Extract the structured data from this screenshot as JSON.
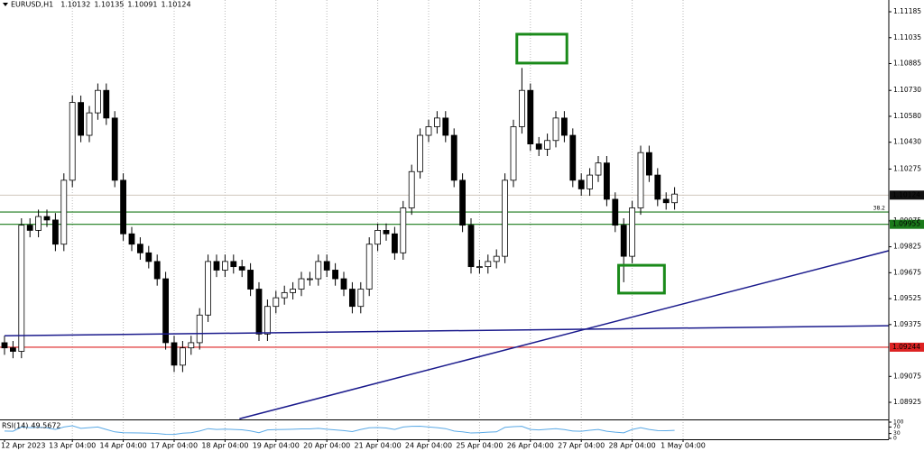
{
  "chart_data": {
    "type": "candlestick",
    "symbol": "EURUSD,H1",
    "header_values": [
      1.10132,
      1.10135,
      1.10091,
      1.10124
    ],
    "up_color": "#ffffff",
    "down_color": "#000000",
    "open": [
      1.0927,
      1.0924,
      1.0922,
      1.0995,
      1.0992,
      1.1,
      1.0998,
      1.0984,
      1.1021,
      1.1066,
      1.1047,
      1.106,
      1.1073,
      1.1057,
      1.1021,
      1.099,
      1.0984,
      1.0979,
      1.0974,
      1.0964,
      1.0927,
      1.0914,
      1.0924,
      1.0927,
      1.0943,
      1.0974,
      1.0969,
      1.0974,
      1.0971,
      1.0969,
      1.0958,
      1.0932,
      1.0948,
      1.0953,
      1.0956,
      1.0958,
      1.0964,
      1.0964,
      1.0974,
      1.0969,
      1.0964,
      1.0958,
      1.0948,
      1.0958,
      1.0984,
      1.0992,
      1.099,
      1.0979,
      1.1005,
      1.1026,
      1.1047,
      1.1052,
      1.1057,
      1.1047,
      1.1021,
      1.0995,
      1.0971,
      1.0971,
      1.0974,
      1.0977,
      1.1021,
      1.1052,
      1.1073,
      1.1042,
      1.1039,
      1.1044,
      1.1057,
      1.1047,
      1.1021,
      1.1016,
      1.1024,
      1.1031,
      1.101,
      1.0995,
      1.0977,
      1.1005,
      1.1037,
      1.1024,
      1.101,
      1.1008
    ],
    "high": [
      1.0931,
      1.0928,
      1.0999,
      1.0999,
      1.1004,
      1.1004,
      1.1002,
      1.1025,
      1.107,
      1.107,
      1.1064,
      1.1077,
      1.1077,
      1.1061,
      1.1025,
      1.0994,
      1.0988,
      1.0983,
      1.0978,
      1.0968,
      1.0931,
      1.0928,
      1.0931,
      1.0947,
      1.0978,
      1.0978,
      1.0978,
      1.0978,
      1.0975,
      1.0973,
      1.0962,
      1.0952,
      1.0957,
      1.096,
      1.0962,
      1.0968,
      1.0968,
      1.0978,
      1.0978,
      1.0973,
      1.0968,
      1.0962,
      1.0962,
      1.0988,
      1.0996,
      1.0996,
      1.0994,
      1.1009,
      1.103,
      1.1051,
      1.1056,
      1.1061,
      1.1061,
      1.1051,
      1.1025,
      1.0999,
      1.0975,
      1.0978,
      1.0981,
      1.1025,
      1.1056,
      1.1086,
      1.1077,
      1.1046,
      1.1048,
      1.1061,
      1.1061,
      1.1051,
      1.1025,
      1.1028,
      1.1035,
      1.1035,
      1.1014,
      1.0999,
      1.1009,
      1.1041,
      1.1041,
      1.1028,
      1.1014,
      1.1017
    ],
    "low": [
      1.092,
      1.0918,
      1.0918,
      1.0988,
      1.0988,
      1.0994,
      1.098,
      1.098,
      1.1017,
      1.1043,
      1.1043,
      1.1056,
      1.1053,
      1.1017,
      1.0986,
      1.098,
      1.0975,
      1.097,
      1.096,
      1.0923,
      1.091,
      1.091,
      1.092,
      1.0923,
      1.0939,
      1.0965,
      1.0965,
      1.0967,
      1.0965,
      1.0954,
      1.0928,
      1.0928,
      1.0944,
      1.0949,
      1.0952,
      1.0954,
      1.096,
      1.096,
      1.0965,
      1.096,
      1.0954,
      1.0944,
      1.0944,
      1.0954,
      1.098,
      1.0986,
      1.0975,
      1.0975,
      1.1001,
      1.1022,
      1.1043,
      1.1048,
      1.1043,
      1.1017,
      1.0991,
      1.0967,
      1.0967,
      1.0967,
      1.097,
      1.0973,
      1.1017,
      1.1048,
      1.1038,
      1.1035,
      1.1035,
      1.104,
      1.1043,
      1.1017,
      1.1012,
      1.1012,
      1.102,
      1.1006,
      1.0991,
      1.0962,
      1.0973,
      1.1001,
      1.102,
      1.1006,
      1.1004,
      1.1004
    ],
    "close": [
      1.0924,
      1.0922,
      1.0995,
      1.0992,
      1.1,
      1.0998,
      1.0984,
      1.1021,
      1.1066,
      1.1047,
      1.106,
      1.1073,
      1.1057,
      1.1021,
      1.099,
      1.0984,
      1.0979,
      1.0974,
      1.0964,
      1.0927,
      1.0914,
      1.0924,
      1.0927,
      1.0943,
      1.0974,
      1.0969,
      1.0974,
      1.0971,
      1.0969,
      1.0958,
      1.0932,
      1.0948,
      1.0953,
      1.0956,
      1.0958,
      1.0964,
      1.0964,
      1.0974,
      1.0969,
      1.0964,
      1.0958,
      1.0948,
      1.0958,
      1.0984,
      1.0992,
      1.099,
      1.0979,
      1.1005,
      1.1026,
      1.1047,
      1.1052,
      1.1057,
      1.1047,
      1.1021,
      1.0995,
      1.0971,
      1.0971,
      1.0974,
      1.0977,
      1.1021,
      1.1052,
      1.1073,
      1.1042,
      1.1039,
      1.1044,
      1.1057,
      1.1047,
      1.1021,
      1.1016,
      1.1024,
      1.1031,
      1.101,
      1.0995,
      1.0977,
      1.1005,
      1.1037,
      1.1024,
      1.101,
      1.1008,
      1.1013
    ],
    "ylim": [
      1.08826,
      1.11253
    ],
    "yticks": [
      1.11185,
      1.11035,
      1.10885,
      {
        "value": 1.1073,
        "label": "1.10730"
      },
      {
        "value": 1.1058,
        "label": "1.10580"
      },
      {
        "value": 1.1043,
        "label": "1.10430"
      },
      1.10275,
      1.09975,
      1.09825,
      1.09675,
      1.09525,
      1.09375,
      1.09075,
      1.08925
    ],
    "xticks": [
      {
        "value": 0,
        "label": "12 Apr 2023"
      },
      {
        "value": 8,
        "label": "13 Apr 04:00"
      },
      {
        "value": 14,
        "label": "14 Apr 04:00"
      },
      {
        "value": 20,
        "label": "17 Apr 04:00"
      },
      {
        "value": 26,
        "label": "18 Apr 04:00"
      },
      {
        "value": 32,
        "label": "19 Apr 04:00"
      },
      {
        "value": 38,
        "label": "20 Apr 04:00"
      },
      {
        "value": 44,
        "label": "21 Apr 04:00"
      },
      {
        "value": 50,
        "label": "24 Apr 04:00"
      },
      {
        "value": 56,
        "label": "25 Apr 04:00"
      },
      {
        "value": 62,
        "label": "26 Apr 04:00"
      },
      {
        "value": 68,
        "label": "27 Apr 04:00"
      },
      {
        "value": 74,
        "label": "28 Apr 04:00"
      },
      {
        "value": 80,
        "label": "1 May 04:00"
      }
    ],
    "grid": true,
    "levels": [
      {
        "value": 1.10124,
        "color": "#c9beb2",
        "tag": true,
        "tag_color": "#111111"
      },
      {
        "value": 1.10026,
        "color": "#1a7a1a",
        "tag": false,
        "note": "38.2"
      },
      {
        "value": 1.09955,
        "color": "#1a7a1a",
        "tag": true,
        "tag_color": "#1a7a1a"
      },
      {
        "value": 1.09244,
        "color": "#dd2222",
        "tag": true,
        "tag_color": "#dd2222"
      }
    ],
    "trendlines": [
      {
        "from": [
          0,
          1.0931
        ],
        "to": [
          108,
          1.0937
        ],
        "color": "#1a1a8c"
      },
      {
        "from": [
          27.7,
          1.0883
        ],
        "to": [
          108,
          1.0985
        ],
        "color": "#1a1a8c"
      }
    ],
    "rectangles": [
      {
        "x": [
          60.4,
          66.3
        ],
        "y": [
          1.10888,
          1.11055
        ],
        "color": "#1a8a1a"
      },
      {
        "x": [
          72.4,
          77.8
        ],
        "y": [
          1.09557,
          1.09718
        ],
        "color": "#1a8a1a"
      }
    ],
    "rsi": {
      "name": "RSI(14)",
      "color": "#5aa9e6",
      "ylim": [
        0,
        100
      ],
      "yticks": [
        100,
        70,
        30,
        0
      ],
      "values": [
        45,
        44,
        70,
        66,
        68,
        65,
        55,
        70,
        78,
        62,
        66,
        70,
        55,
        40,
        35,
        34,
        33,
        32,
        30,
        25,
        24,
        32,
        35,
        45,
        60,
        55,
        57,
        55,
        53,
        46,
        35,
        52,
        54,
        55,
        56,
        58,
        58,
        62,
        56,
        52,
        48,
        42,
        55,
        65,
        67,
        64,
        55,
        70,
        74,
        75,
        70,
        66,
        60,
        45,
        40,
        33,
        35,
        38,
        40,
        68,
        72,
        74,
        55,
        52,
        56,
        60,
        54,
        45,
        44,
        50,
        55,
        44,
        38,
        34,
        55,
        66,
        55,
        48,
        47,
        49.5672
      ]
    }
  }
}
